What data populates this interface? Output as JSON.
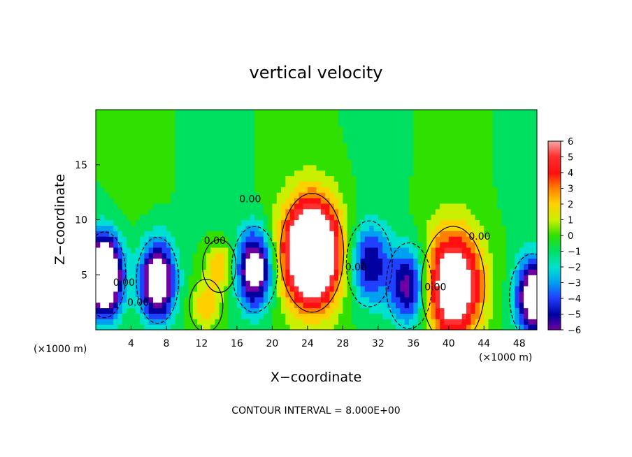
{
  "chart_data": {
    "type": "heatmap",
    "title": "vertical velocity",
    "xlabel": "X−coordinate",
    "ylabel": "Z−coordinate",
    "x_unit_label": "(×1000 m)",
    "y_unit_label": "(×1000 m)",
    "xlim": [
      0,
      50
    ],
    "ylim": [
      0,
      20
    ],
    "x_ticks": [
      4,
      8,
      12,
      16,
      20,
      24,
      28,
      32,
      36,
      40,
      44,
      48
    ],
    "y_ticks": [
      5,
      10,
      15
    ],
    "colorbar": {
      "ticks": [
        6,
        5,
        4,
        3,
        2,
        1,
        0,
        -1,
        -2,
        -3,
        -4,
        -5,
        -6
      ],
      "tick_labels": [
        "6",
        "5",
        "4",
        "3",
        "2",
        "1",
        "0",
        "−1",
        "−2",
        "−3",
        "−4",
        "−5",
        "−6"
      ],
      "range": [
        -6,
        6
      ]
    },
    "contour_labels": [
      "0.00",
      "0.00",
      "0.00",
      "0.00",
      "0.00",
      "0.00",
      "0.00"
    ],
    "footnote": "CONTOUR INTERVAL = 8.000E+00",
    "features": [
      {
        "x": 24.5,
        "z": 7.0,
        "w": 12,
        "kind": "updraft"
      },
      {
        "x": 40.5,
        "z": 4.0,
        "w": 9,
        "kind": "updraft"
      },
      {
        "x": 12.5,
        "z": 2.2,
        "w": 3,
        "kind": "updraft"
      },
      {
        "x": 14.0,
        "z": 5.8,
        "w": 3,
        "kind": "updraft"
      },
      {
        "x": 1.0,
        "z": 5.0,
        "w": -12,
        "kind": "downdraft"
      },
      {
        "x": 7.0,
        "z": 4.5,
        "w": -9,
        "kind": "downdraft"
      },
      {
        "x": 18.0,
        "z": 5.5,
        "w": -8,
        "kind": "downdraft"
      },
      {
        "x": 31.0,
        "z": 6.0,
        "w": -5,
        "kind": "downdraft"
      },
      {
        "x": 35.5,
        "z": 4.0,
        "w": -6,
        "kind": "downdraft"
      },
      {
        "x": 49.5,
        "z": 3.0,
        "w": -8,
        "kind": "downdraft"
      }
    ]
  }
}
